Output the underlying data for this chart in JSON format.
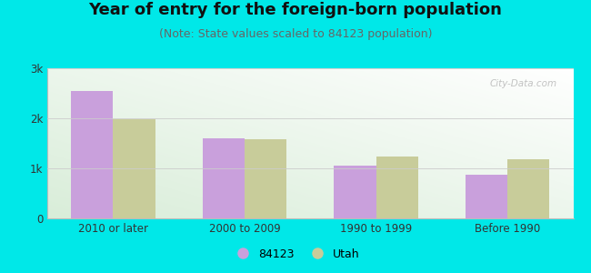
{
  "title": "Year of entry for the foreign-born population",
  "subtitle": "(Note: State values scaled to 84123 population)",
  "categories": [
    "2010 or later",
    "2000 to 2009",
    "1990 to 1999",
    "Before 1990"
  ],
  "values_84123": [
    2550,
    1600,
    1050,
    870
  ],
  "values_utah": [
    1980,
    1580,
    1230,
    1180
  ],
  "color_84123": "#c9a0dc",
  "color_utah": "#c8cc9a",
  "background_outer": "#00e8e8",
  "ylim": [
    0,
    3000
  ],
  "yticks": [
    0,
    1000,
    2000,
    3000
  ],
  "ytick_labels": [
    "0",
    "1k",
    "2k",
    "3k"
  ],
  "bar_width": 0.32,
  "legend_label_84123": "84123",
  "legend_label_utah": "Utah",
  "title_fontsize": 13,
  "subtitle_fontsize": 9,
  "watermark_text": "City-Data.com"
}
